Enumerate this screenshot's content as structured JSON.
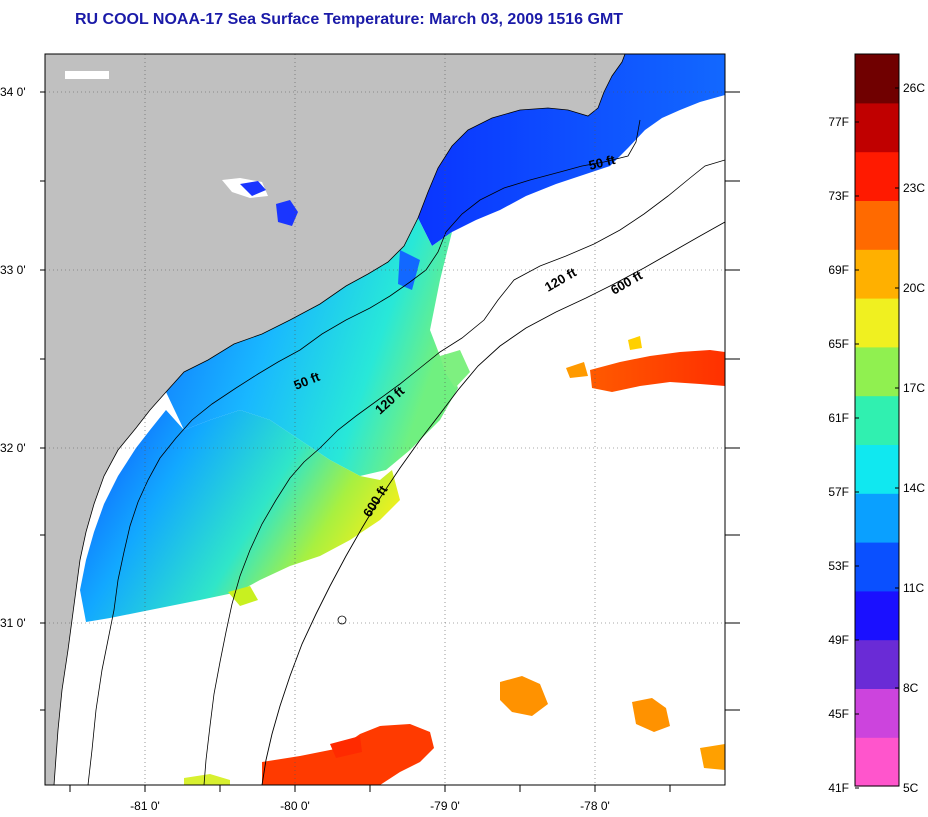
{
  "title": "RU COOL  NOAA-17  Sea Surface Temperature:  March 03, 2009 1516 GMT",
  "map": {
    "lat_ticks": [
      "34 0'",
      "33 0'",
      "32 0'",
      "31 0'"
    ],
    "lon_ticks": [
      "-81 0'",
      "-80 0'",
      "-79 0'",
      "-78 0'"
    ],
    "contour_labels": {
      "c50_north": "50 ft",
      "c50_south": "50 ft",
      "c120_north": "120 ft",
      "c120_south": "120 ft",
      "c600_north": "600 ft",
      "c600_south": "600 ft"
    },
    "land_color": "#c0c0c0",
    "no_data_color": "#ffffff"
  },
  "colorbar": {
    "fahrenheit_labels": [
      "77F",
      "73F",
      "69F",
      "65F",
      "61F",
      "57F",
      "53F",
      "49F",
      "45F",
      "41F"
    ],
    "celsius_labels": [
      "26C",
      "23C",
      "20C",
      "17C",
      "14C",
      "11C",
      "8C",
      "5C"
    ],
    "colors": [
      "#ff55cc",
      "#cc44dd",
      "#6a2bd6",
      "#1a10ff",
      "#0a50ff",
      "#0aa0ff",
      "#10e8f0",
      "#30f0b0",
      "#90f050",
      "#f0f020",
      "#ffb000",
      "#ff6a00",
      "#ff1a00",
      "#c00000",
      "#700000"
    ]
  }
}
